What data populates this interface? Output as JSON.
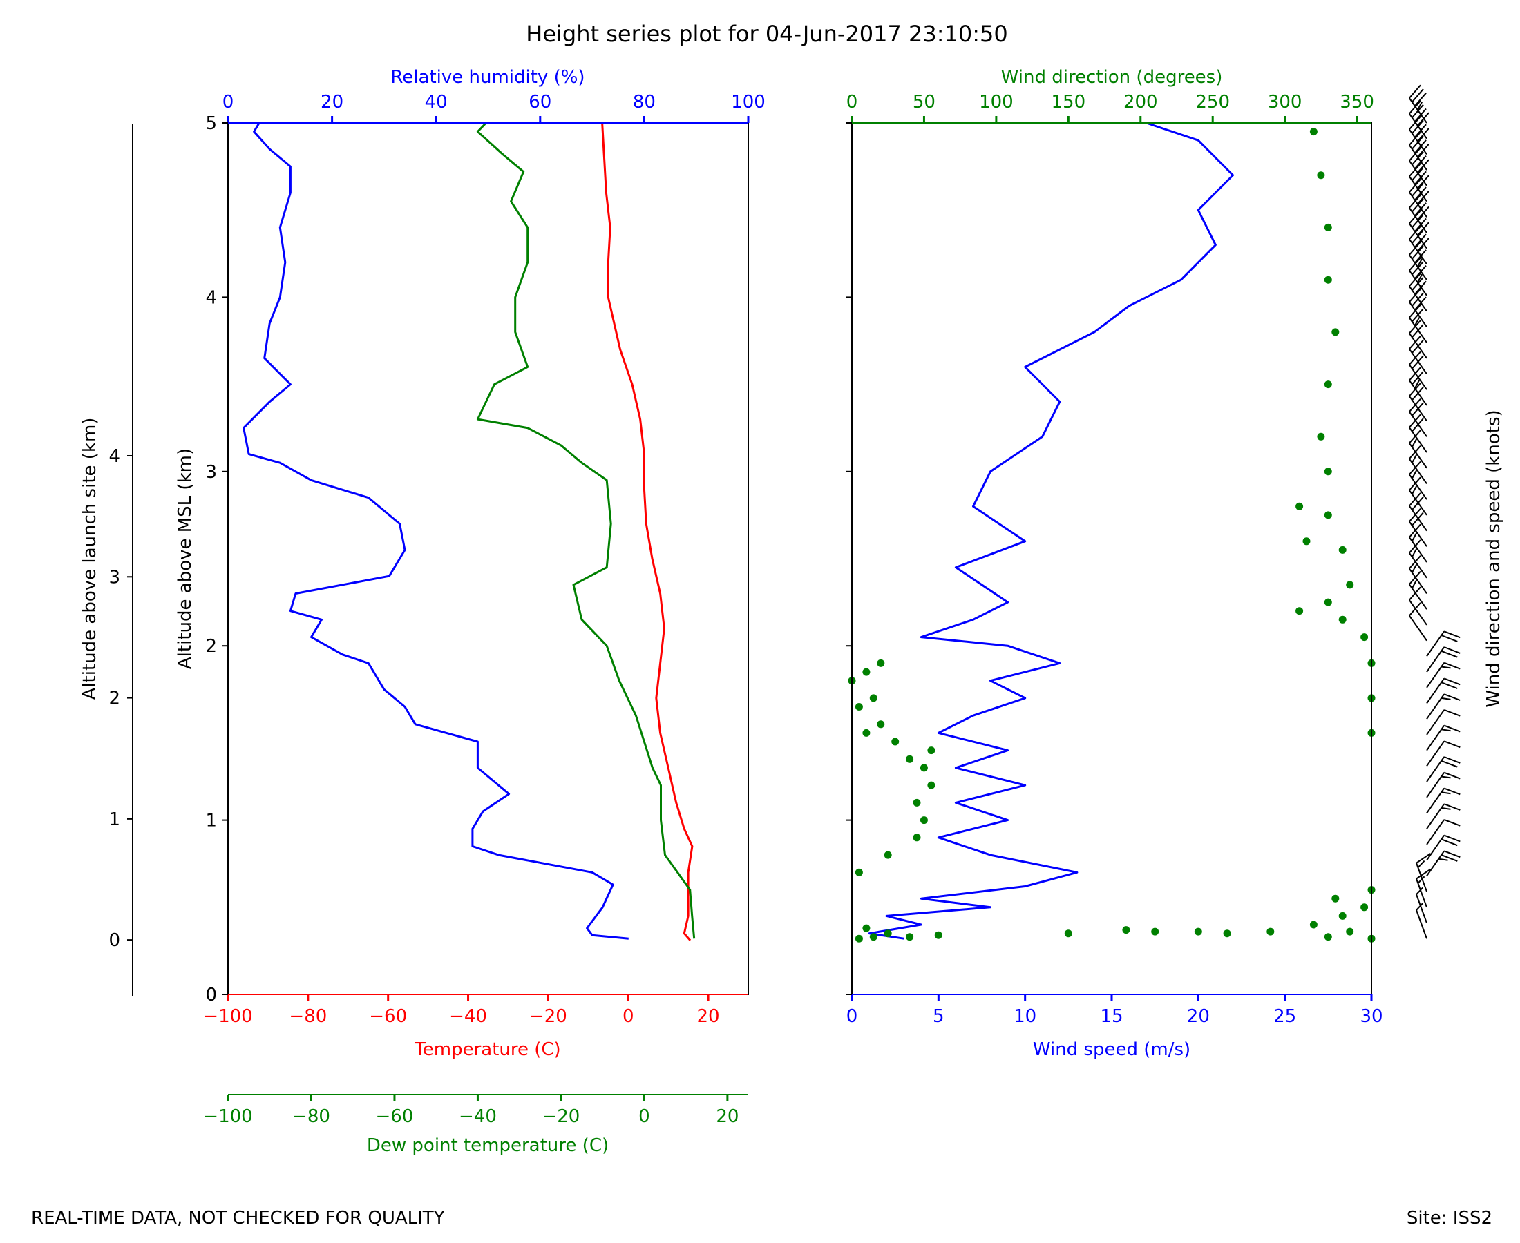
{
  "title": "Height series plot for 04-Jun-2017 23:10:50",
  "footer": {
    "left": "REAL-TIME DATA, NOT CHECKED FOR QUALITY",
    "right": "Site: ISS2"
  },
  "colors": {
    "temperature": "#ff0000",
    "dewpoint": "#008000",
    "humidity": "#0000ff",
    "wind_speed": "#0000ff",
    "wind_direction": "#008000",
    "barbs": "#000000",
    "axis": "#000000"
  },
  "chart_data": [
    {
      "type": "line",
      "panel": "thermodynamic",
      "y_axes": [
        {
          "label": "Altitude above launch site (km)",
          "ticks": [
            "0",
            "1",
            "2",
            "3",
            "4"
          ],
          "ylim": [
            -0.45,
            6.75
          ]
        },
        {
          "label": "Altitude above MSL (km)",
          "ticks": [
            "0",
            "1",
            "2",
            "3",
            "4",
            "5"
          ],
          "ylim": [
            0,
            5
          ]
        }
      ],
      "x_axes": [
        {
          "id": "temp",
          "label": "Temperature (C)",
          "color": "#ff0000",
          "position": "bottom",
          "xlim": [
            -100,
            30
          ],
          "ticks": [
            "−100",
            "−80",
            "−60",
            "−40",
            "−20",
            "0",
            "20"
          ],
          "tick_values": [
            -100,
            -80,
            -60,
            -40,
            -20,
            0,
            20
          ]
        },
        {
          "id": "dew",
          "label": "Dew point temperature (C)",
          "color": "#008000",
          "position": "bottom-offset",
          "xlim": [
            -100,
            25
          ],
          "ticks": [
            "−100",
            "−80",
            "−60",
            "−40",
            "−20",
            "0",
            "20"
          ],
          "tick_values": [
            -100,
            -80,
            -60,
            -40,
            -20,
            0,
            20
          ]
        },
        {
          "id": "rh",
          "label": "Relative humidity (%)",
          "color": "#0000ff",
          "position": "top",
          "xlim": [
            0,
            100
          ],
          "ticks": [
            "0",
            "20",
            "40",
            "60",
            "80",
            "100"
          ],
          "tick_values": [
            0,
            20,
            40,
            60,
            80,
            100
          ]
        }
      ],
      "series": [
        {
          "axis": "temp",
          "color": "#ff0000",
          "points": [
            [
              15.5,
              0.31
            ],
            [
              14,
              0.35
            ],
            [
              15,
              0.45
            ],
            [
              15,
              0.7
            ],
            [
              16,
              0.85
            ],
            [
              14,
              0.95
            ],
            [
              12,
              1.1
            ],
            [
              10,
              1.3
            ],
            [
              8,
              1.5
            ],
            [
              7,
              1.7
            ],
            [
              8,
              1.9
            ],
            [
              9,
              2.1
            ],
            [
              8,
              2.3
            ],
            [
              6,
              2.5
            ],
            [
              4.5,
              2.7
            ],
            [
              4,
              2.9
            ],
            [
              4,
              3.1
            ],
            [
              3,
              3.3
            ],
            [
              1,
              3.5
            ],
            [
              -2,
              3.7
            ],
            [
              -5,
              4.0
            ],
            [
              -5,
              4.2
            ],
            [
              -4.5,
              4.4
            ],
            [
              -5.5,
              4.6
            ],
            [
              -6,
              4.8
            ],
            [
              -6.5,
              5.0
            ]
          ]
        },
        {
          "axis": "dew",
          "color": "#008000",
          "points": [
            [
              12,
              0.32
            ],
            [
              11.5,
              0.45
            ],
            [
              11,
              0.6
            ],
            [
              8,
              0.7
            ],
            [
              5,
              0.8
            ],
            [
              4,
              1.0
            ],
            [
              4,
              1.2
            ],
            [
              2,
              1.3
            ],
            [
              0,
              1.45
            ],
            [
              -2,
              1.6
            ],
            [
              -6,
              1.8
            ],
            [
              -9,
              2.0
            ],
            [
              -15,
              2.15
            ],
            [
              -17,
              2.35
            ],
            [
              -9,
              2.45
            ],
            [
              -8,
              2.7
            ],
            [
              -9,
              2.95
            ],
            [
              -15,
              3.05
            ],
            [
              -20,
              3.15
            ],
            [
              -28,
              3.25
            ],
            [
              -40,
              3.3
            ],
            [
              -36,
              3.5
            ],
            [
              -28,
              3.6
            ],
            [
              -31,
              3.8
            ],
            [
              -31,
              4.0
            ],
            [
              -28,
              4.2
            ],
            [
              -28,
              4.4
            ],
            [
              -32,
              4.55
            ],
            [
              -29,
              4.72
            ],
            [
              -34,
              4.82
            ],
            [
              -40,
              4.95
            ],
            [
              -38,
              5.0
            ]
          ]
        },
        {
          "axis": "rh",
          "color": "#0000ff",
          "points": [
            [
              77,
              0.32
            ],
            [
              70,
              0.34
            ],
            [
              69,
              0.38
            ],
            [
              72,
              0.5
            ],
            [
              74,
              0.63
            ],
            [
              70,
              0.7
            ],
            [
              52,
              0.8
            ],
            [
              47,
              0.85
            ],
            [
              47,
              0.95
            ],
            [
              49,
              1.05
            ],
            [
              54,
              1.15
            ],
            [
              48,
              1.3
            ],
            [
              48,
              1.45
            ],
            [
              36,
              1.55
            ],
            [
              34,
              1.65
            ],
            [
              30,
              1.75
            ],
            [
              27,
              1.9
            ],
            [
              22,
              1.95
            ],
            [
              16,
              2.05
            ],
            [
              18,
              2.15
            ],
            [
              12,
              2.2
            ],
            [
              13,
              2.3
            ],
            [
              31,
              2.4
            ],
            [
              34,
              2.55
            ],
            [
              33,
              2.7
            ],
            [
              27,
              2.85
            ],
            [
              16,
              2.95
            ],
            [
              10,
              3.05
            ],
            [
              4,
              3.1
            ],
            [
              3,
              3.25
            ],
            [
              8,
              3.4
            ],
            [
              12,
              3.5
            ],
            [
              7,
              3.65
            ],
            [
              8,
              3.85
            ],
            [
              10,
              4.0
            ],
            [
              11,
              4.2
            ],
            [
              10,
              4.4
            ],
            [
              12,
              4.6
            ],
            [
              12,
              4.75
            ],
            [
              8,
              4.85
            ],
            [
              5,
              4.95
            ],
            [
              6,
              5.0
            ]
          ]
        }
      ]
    },
    {
      "type": "line+scatter",
      "panel": "wind",
      "y_axes": [
        {
          "ylim": [
            0,
            5
          ],
          "ticks": [
            "",
            "",
            "",
            "",
            "",
            ""
          ]
        }
      ],
      "x_axes": [
        {
          "id": "speed",
          "label": "Wind speed (m/s)",
          "color": "#0000ff",
          "position": "bottom",
          "xlim": [
            0,
            30
          ],
          "ticks": [
            "0",
            "5",
            "10",
            "15",
            "20",
            "25",
            "30"
          ],
          "tick_values": [
            0,
            5,
            10,
            15,
            20,
            25,
            30
          ]
        },
        {
          "id": "dir",
          "label": "Wind direction (degrees)",
          "color": "#008000",
          "position": "top",
          "xlim": [
            0,
            360
          ],
          "ticks": [
            "0",
            "50",
            "100",
            "150",
            "200",
            "250",
            "300",
            "350"
          ],
          "tick_values": [
            0,
            50,
            100,
            150,
            200,
            250,
            300,
            350
          ]
        }
      ],
      "series": [
        {
          "axis": "speed",
          "kind": "line",
          "color": "#0000ff",
          "points": [
            [
              3,
              0.32
            ],
            [
              1,
              0.35
            ],
            [
              4,
              0.4
            ],
            [
              2,
              0.45
            ],
            [
              8,
              0.5
            ],
            [
              4,
              0.55
            ],
            [
              10,
              0.62
            ],
            [
              13,
              0.7
            ],
            [
              8,
              0.8
            ],
            [
              5,
              0.9
            ],
            [
              9,
              1.0
            ],
            [
              6,
              1.1
            ],
            [
              10,
              1.2
            ],
            [
              6,
              1.3
            ],
            [
              9,
              1.4
            ],
            [
              5,
              1.5
            ],
            [
              7,
              1.6
            ],
            [
              10,
              1.7
            ],
            [
              8,
              1.8
            ],
            [
              12,
              1.9
            ],
            [
              9,
              2.0
            ],
            [
              4,
              2.05
            ],
            [
              7,
              2.15
            ],
            [
              9,
              2.25
            ],
            [
              6,
              2.45
            ],
            [
              10,
              2.6
            ],
            [
              7,
              2.8
            ],
            [
              8,
              3.0
            ],
            [
              11,
              3.2
            ],
            [
              12,
              3.4
            ],
            [
              10,
              3.6
            ],
            [
              14,
              3.8
            ],
            [
              16,
              3.95
            ],
            [
              19,
              4.1
            ],
            [
              21,
              4.3
            ],
            [
              20,
              4.5
            ],
            [
              22,
              4.7
            ],
            [
              20,
              4.9
            ],
            [
              17,
              5.0
            ]
          ]
        },
        {
          "axis": "dir",
          "kind": "scatter",
          "color": "#008000",
          "points": [
            [
              360,
              0.32
            ],
            [
              345,
              0.36
            ],
            [
              330,
              0.33
            ],
            [
              320,
              0.4
            ],
            [
              340,
              0.45
            ],
            [
              355,
              0.5
            ],
            [
              335,
              0.55
            ],
            [
              360,
              0.6
            ],
            [
              40,
              0.33
            ],
            [
              60,
              0.34
            ],
            [
              150,
              0.35
            ],
            [
              190,
              0.37
            ],
            [
              210,
              0.36
            ],
            [
              240,
              0.36
            ],
            [
              260,
              0.35
            ],
            [
              290,
              0.36
            ],
            [
              5,
              0.32
            ],
            [
              15,
              0.33
            ],
            [
              25,
              0.35
            ],
            [
              10,
              0.38
            ],
            [
              5,
              0.7
            ],
            [
              25,
              0.8
            ],
            [
              45,
              0.9
            ],
            [
              50,
              1.0
            ],
            [
              45,
              1.1
            ],
            [
              55,
              1.2
            ],
            [
              50,
              1.3
            ],
            [
              40,
              1.35
            ],
            [
              55,
              1.4
            ],
            [
              30,
              1.45
            ],
            [
              10,
              1.5
            ],
            [
              20,
              1.55
            ],
            [
              5,
              1.65
            ],
            [
              15,
              1.7
            ],
            [
              0,
              1.8
            ],
            [
              10,
              1.85
            ],
            [
              20,
              1.9
            ],
            [
              360,
              1.5
            ],
            [
              360,
              1.7
            ],
            [
              360,
              1.9
            ],
            [
              355,
              2.05
            ],
            [
              340,
              2.15
            ],
            [
              330,
              2.25
            ],
            [
              345,
              2.35
            ],
            [
              340,
              2.55
            ],
            [
              330,
              2.75
            ],
            [
              330,
              3.0
            ],
            [
              325,
              3.2
            ],
            [
              330,
              3.5
            ],
            [
              335,
              3.8
            ],
            [
              330,
              4.1
            ],
            [
              330,
              4.4
            ],
            [
              325,
              4.7
            ],
            [
              320,
              4.95
            ],
            [
              310,
              2.8
            ],
            [
              315,
              2.6
            ],
            [
              310,
              2.2
            ]
          ]
        }
      ],
      "barbs": {
        "label": "Wind direction and speed (knots)",
        "color": "#000000",
        "note": "wind barbs drawn at heights matching the wind profile"
      }
    }
  ]
}
